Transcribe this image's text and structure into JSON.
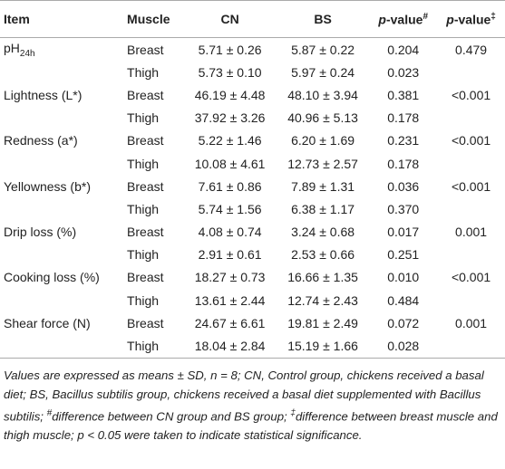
{
  "header": {
    "cells": [
      "Item",
      "Muscle",
      "CN",
      "BS",
      {
        "italic": "p",
        "text": "-value",
        "sup": "#"
      },
      {
        "italic": "p",
        "text": "-value",
        "sup": "‡"
      }
    ]
  },
  "groups": [
    {
      "item": {
        "text": "pH",
        "sub": "24h"
      },
      "rows": [
        [
          "Breast",
          "5.71 ± 0.26",
          "5.87 ± 0.22",
          "0.204",
          "0.479"
        ],
        [
          "Thigh",
          "5.73 ± 0.10",
          "5.97 ± 0.24",
          "0.023"
        ]
      ]
    },
    {
      "item": {
        "text": "Lightness (L*)"
      },
      "rows": [
        [
          "Breast",
          "46.19 ± 4.48",
          "48.10 ± 3.94",
          "0.381",
          "<0.001"
        ],
        [
          "Thigh",
          "37.92 ± 3.26",
          "40.96 ± 5.13",
          "0.178"
        ]
      ]
    },
    {
      "item": {
        "text": "Redness (a*)"
      },
      "rows": [
        [
          "Breast",
          "5.22 ± 1.46",
          "6.20 ± 1.69",
          "0.231",
          "<0.001"
        ],
        [
          "Thigh",
          "10.08 ± 4.61",
          "12.73 ± 2.57",
          "0.178"
        ]
      ]
    },
    {
      "item": {
        "text": "Yellowness (b*)"
      },
      "rows": [
        [
          "Breast",
          "7.61 ± 0.86",
          "7.89 ± 1.31",
          "0.036",
          "<0.001"
        ],
        [
          "Thigh",
          "5.74 ± 1.56",
          "6.38 ± 1.17",
          "0.370"
        ]
      ]
    },
    {
      "item": {
        "text": "Drip loss (%)"
      },
      "rows": [
        [
          "Breast",
          "4.08 ± 0.74",
          "3.24 ± 0.68",
          "0.017",
          "0.001"
        ],
        [
          "Thigh",
          "2.91 ± 0.61",
          "2.53 ± 0.66",
          "0.251"
        ]
      ]
    },
    {
      "item": {
        "text": "Cooking loss (%)"
      },
      "rows": [
        [
          "Breast",
          "18.27 ± 0.73",
          "16.66 ± 1.35",
          "0.010",
          "<0.001"
        ],
        [
          "Thigh",
          "13.61 ± 2.44",
          "12.74 ± 2.43",
          "0.484"
        ]
      ]
    },
    {
      "item": {
        "text": "Shear force (N)"
      },
      "rows": [
        [
          "Breast",
          "24.67 ± 6.61",
          "19.81 ± 2.49",
          "0.072",
          "0.001"
        ],
        [
          "Thigh",
          "18.04 ± 2.84",
          "15.19 ± 1.66",
          "0.028"
        ]
      ]
    }
  ],
  "footnote": [
    {
      "text": "Values are expressed as means ± SD, n = 8; CN, Control group, chickens received a basal diet; BS, Bacillus subtilis group, chickens received a basal diet supplemented with Bacillus subtilis; "
    },
    {
      "sup": "#"
    },
    {
      "text": "difference between CN group and BS group; "
    },
    {
      "sup": "‡"
    },
    {
      "text": "difference between breast muscle and thigh muscle; p < 0.05 were taken to indicate statistical significance."
    }
  ]
}
